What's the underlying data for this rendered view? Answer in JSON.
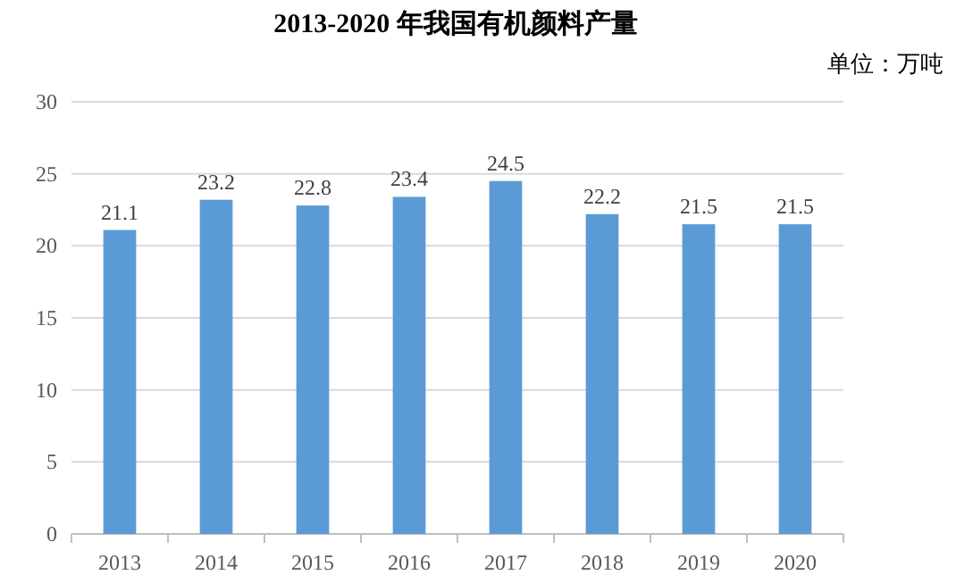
{
  "chart_data": {
    "type": "bar",
    "title": "2013-2020 年我国有机颜料产量",
    "subtitle": "单位：万吨",
    "categories": [
      "2013",
      "2014",
      "2015",
      "2016",
      "2017",
      "2018",
      "2019",
      "2020"
    ],
    "values": [
      21.1,
      23.2,
      22.8,
      23.4,
      24.5,
      22.2,
      21.5,
      21.5
    ],
    "color": "#5b9bd5",
    "ylim": [
      0,
      30
    ],
    "yticks": [
      0,
      5,
      10,
      15,
      20,
      25,
      30
    ],
    "grid": "y",
    "data_labels": true
  }
}
